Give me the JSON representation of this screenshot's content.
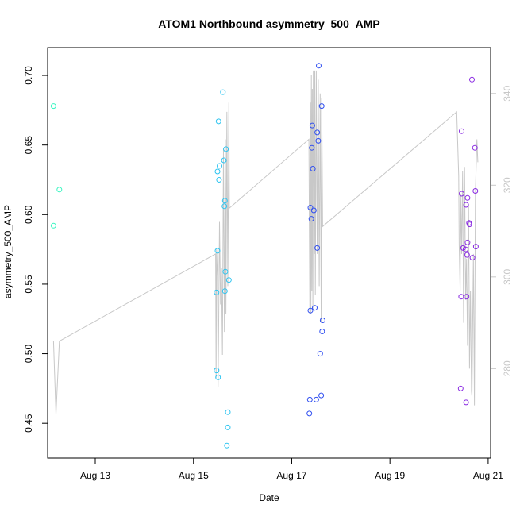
{
  "chart_data": {
    "type": "scatter",
    "title": "ATOM1 Northbound asymmetry_500_AMP",
    "xlabel": "Date",
    "ylabel": "asymmetry_500_AMP",
    "x_ticks": [
      "Aug 13",
      "Aug 15",
      "Aug 17",
      "Aug 19",
      "Aug 21"
    ],
    "y_ticks": [
      "0.45",
      "0.50",
      "0.55",
      "0.60",
      "0.65",
      "0.70"
    ],
    "y2_ticks": [
      "280",
      "300",
      "320",
      "340"
    ],
    "xlim": [
      12.03,
      21.05
    ],
    "ylim": [
      0.425,
      0.72
    ],
    "y2lim": [
      260.5,
      350
    ],
    "grid": false,
    "legend": "none",
    "colors": {
      "group1": "#36F5C0",
      "group2": "#2EC4F0",
      "group3": "#2F4EF0",
      "group4": "#8A2BE2",
      "secondary_line": "#c8c8c8"
    },
    "series": [
      {
        "color_key": "group1",
        "points": [
          [
            12.15,
            0.678
          ],
          [
            12.15,
            0.592
          ],
          [
            12.27,
            0.618
          ]
        ]
      },
      {
        "color_key": "group2",
        "points": [
          [
            15.47,
            0.488
          ],
          [
            15.5,
            0.483
          ],
          [
            15.47,
            0.544
          ],
          [
            15.49,
            0.574
          ],
          [
            15.49,
            0.631
          ],
          [
            15.52,
            0.625
          ],
          [
            15.53,
            0.635
          ],
          [
            15.51,
            0.667
          ],
          [
            15.6,
            0.688
          ],
          [
            15.62,
            0.639
          ],
          [
            15.66,
            0.647
          ],
          [
            15.64,
            0.61
          ],
          [
            15.63,
            0.606
          ],
          [
            15.65,
            0.559
          ],
          [
            15.64,
            0.545
          ],
          [
            15.72,
            0.553
          ],
          [
            15.7,
            0.458
          ],
          [
            15.7,
            0.447
          ],
          [
            15.68,
            0.434
          ]
        ]
      },
      {
        "color_key": "group3",
        "points": [
          [
            17.36,
            0.457
          ],
          [
            17.37,
            0.467
          ],
          [
            17.38,
            0.531
          ],
          [
            17.38,
            0.605
          ],
          [
            17.4,
            0.597
          ],
          [
            17.41,
            0.648
          ],
          [
            17.42,
            0.664
          ],
          [
            17.43,
            0.633
          ],
          [
            17.45,
            0.603
          ],
          [
            17.47,
            0.533
          ],
          [
            17.5,
            0.467
          ],
          [
            17.52,
            0.576
          ],
          [
            17.52,
            0.659
          ],
          [
            17.54,
            0.653
          ],
          [
            17.55,
            0.707
          ],
          [
            17.58,
            0.5
          ],
          [
            17.6,
            0.47
          ],
          [
            17.61,
            0.678
          ],
          [
            17.62,
            0.516
          ],
          [
            17.63,
            0.524
          ]
        ]
      },
      {
        "color_key": "group4",
        "points": [
          [
            20.44,
            0.475
          ],
          [
            20.45,
            0.541
          ],
          [
            20.46,
            0.615
          ],
          [
            20.46,
            0.66
          ],
          [
            20.49,
            0.576
          ],
          [
            20.54,
            0.575
          ],
          [
            20.55,
            0.465
          ],
          [
            20.55,
            0.607
          ],
          [
            20.56,
            0.541
          ],
          [
            20.57,
            0.571
          ],
          [
            20.58,
            0.58
          ],
          [
            20.58,
            0.612
          ],
          [
            20.61,
            0.594
          ],
          [
            20.62,
            0.593
          ],
          [
            20.67,
            0.697
          ],
          [
            20.68,
            0.569
          ],
          [
            20.73,
            0.648
          ],
          [
            20.74,
            0.617
          ],
          [
            20.75,
            0.577
          ]
        ]
      }
    ],
    "secondary_line": {
      "axis": "right",
      "points": [
        [
          12.15,
          286
        ],
        [
          12.2,
          270
        ],
        [
          12.27,
          286
        ],
        [
          15.45,
          305
        ],
        [
          15.46,
          278
        ],
        [
          15.47,
          306
        ],
        [
          15.49,
          300
        ],
        [
          15.5,
          276
        ],
        [
          15.51,
          286
        ],
        [
          15.53,
          312
        ],
        [
          15.55,
          294
        ],
        [
          15.57,
          302
        ],
        [
          15.59,
          283
        ],
        [
          15.61,
          328
        ],
        [
          15.63,
          288
        ],
        [
          15.65,
          330
        ],
        [
          15.66,
          292
        ],
        [
          15.68,
          336
        ],
        [
          15.7,
          298
        ],
        [
          15.72,
          338
        ],
        [
          15.73,
          315
        ],
        [
          17.35,
          330
        ],
        [
          17.37,
          292
        ],
        [
          17.38,
          338
        ],
        [
          17.39,
          292
        ],
        [
          17.4,
          344
        ],
        [
          17.41,
          297
        ],
        [
          17.42,
          341
        ],
        [
          17.43,
          293
        ],
        [
          17.44,
          345
        ],
        [
          17.46,
          305
        ],
        [
          17.47,
          345
        ],
        [
          17.48,
          296
        ],
        [
          17.5,
          345
        ],
        [
          17.52,
          305
        ],
        [
          17.54,
          343
        ],
        [
          17.56,
          298
        ],
        [
          17.58,
          340
        ],
        [
          17.6,
          290
        ],
        [
          17.61,
          339
        ],
        [
          17.63,
          311
        ],
        [
          20.36,
          336
        ],
        [
          20.4,
          322
        ],
        [
          20.41,
          307
        ],
        [
          20.43,
          297
        ],
        [
          20.44,
          318
        ],
        [
          20.46,
          305
        ],
        [
          20.48,
          323
        ],
        [
          20.5,
          290
        ],
        [
          20.52,
          324
        ],
        [
          20.54,
          295
        ],
        [
          20.56,
          304
        ],
        [
          20.58,
          285
        ],
        [
          20.6,
          316
        ],
        [
          20.61,
          300
        ],
        [
          20.62,
          280
        ],
        [
          20.64,
          297
        ],
        [
          20.66,
          275
        ],
        [
          20.67,
          274
        ],
        [
          20.7,
          305
        ],
        [
          20.72,
          272
        ],
        [
          20.74,
          318
        ],
        [
          20.77,
          330
        ],
        [
          20.79,
          325
        ]
      ]
    }
  }
}
